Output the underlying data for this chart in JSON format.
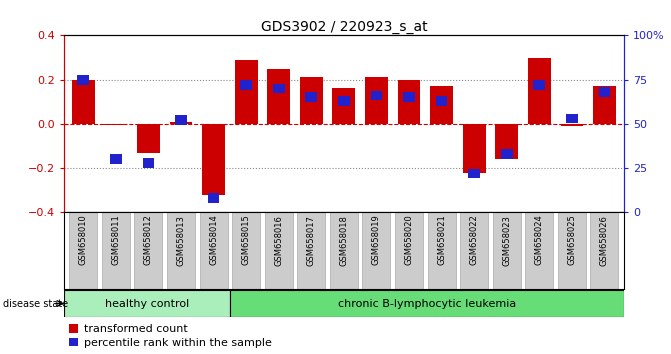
{
  "title": "GDS3902 / 220923_s_at",
  "samples": [
    "GSM658010",
    "GSM658011",
    "GSM658012",
    "GSM658013",
    "GSM658014",
    "GSM658015",
    "GSM658016",
    "GSM658017",
    "GSM658018",
    "GSM658019",
    "GSM658020",
    "GSM658021",
    "GSM658022",
    "GSM658023",
    "GSM658024",
    "GSM658025",
    "GSM658026"
  ],
  "red_values": [
    0.2,
    -0.005,
    -0.13,
    0.01,
    -0.32,
    0.29,
    0.25,
    0.21,
    0.16,
    0.21,
    0.2,
    0.17,
    -0.22,
    -0.16,
    0.3,
    -0.01,
    0.17
  ],
  "blue_values_pct": [
    75,
    30,
    28,
    52,
    8,
    72,
    70,
    65,
    63,
    66,
    65,
    63,
    22,
    33,
    72,
    53,
    68
  ],
  "healthy_control_count": 5,
  "chronic_count": 12,
  "ylim_left": [
    -0.4,
    0.4
  ],
  "ylim_right": [
    0,
    100
  ],
  "yticks_left": [
    -0.4,
    -0.2,
    0.0,
    0.2,
    0.4
  ],
  "yticks_right": [
    0,
    25,
    50,
    75,
    100
  ],
  "ytick_labels_right": [
    "0",
    "25",
    "50",
    "75",
    "100%"
  ],
  "red_color": "#CC0000",
  "blue_color": "#2222CC",
  "healthy_bg": "#AAEEBB",
  "chronic_bg": "#66DD77",
  "bar_bg": "#CCCCCC",
  "bar_border": "#AAAAAA",
  "dotted_line_color": "#888888",
  "zero_line_color": "#CC0000",
  "bar_width": 0.7
}
